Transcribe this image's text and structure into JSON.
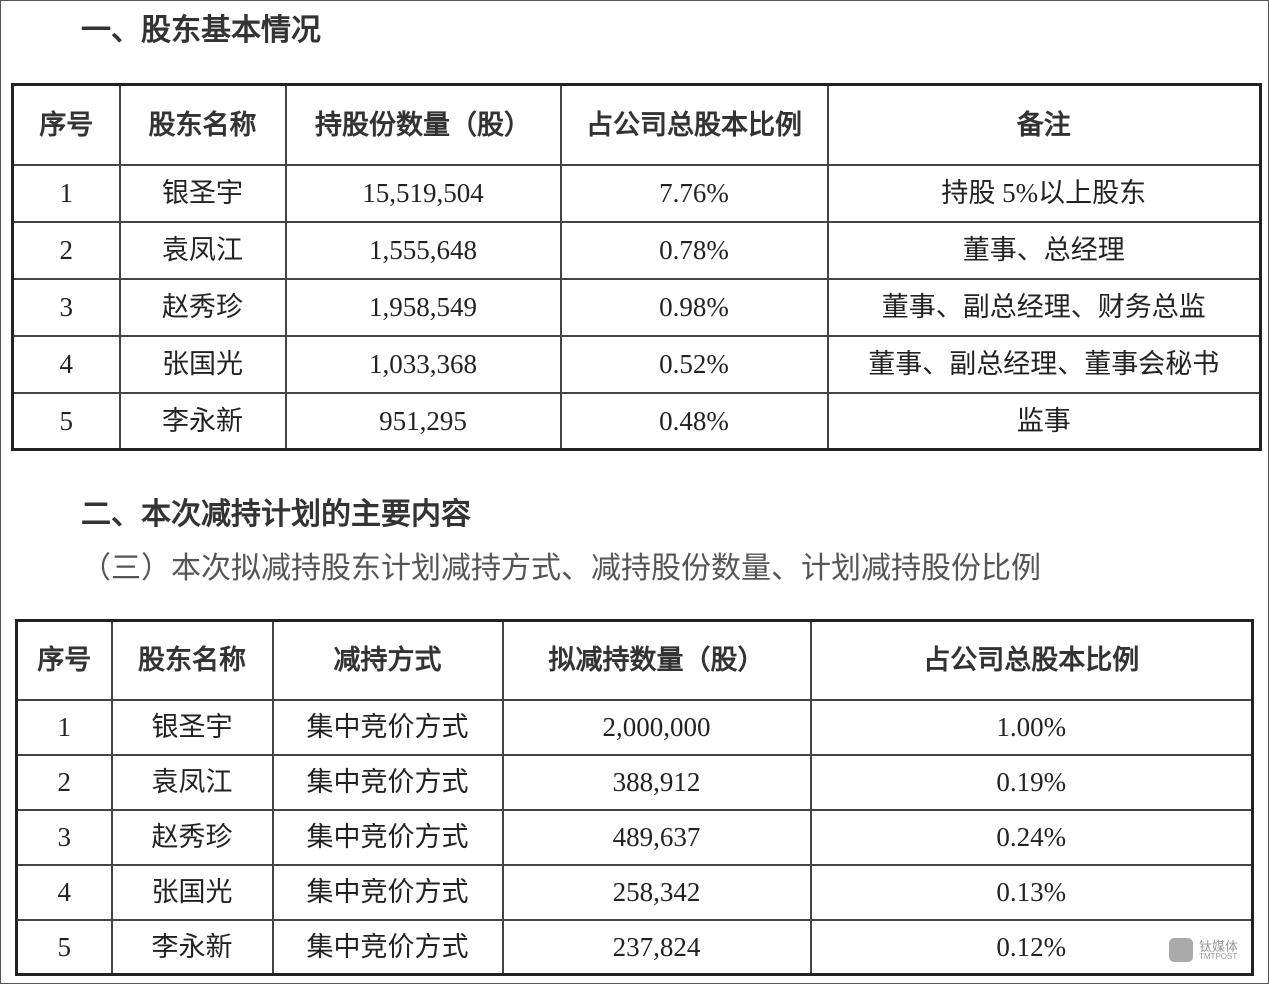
{
  "section1": {
    "title": "一、股东基本情况",
    "table": {
      "header": [
        "序号",
        "股东名称",
        "持股份数量（股）",
        "占公司总股本比例",
        "备注"
      ],
      "rows": [
        [
          "1",
          "银圣宇",
          "15,519,504",
          "7.76%",
          "持股 5%以上股东"
        ],
        [
          "2",
          "袁凤江",
          "1,555,648",
          "0.78%",
          "董事、总经理"
        ],
        [
          "3",
          "赵秀珍",
          "1,958,549",
          "0.98%",
          "董事、副总经理、财务总监"
        ],
        [
          "4",
          "张国光",
          "1,033,368",
          "0.52%",
          "董事、副总经理、董事会秘书"
        ],
        [
          "5",
          "李永新",
          "951,295",
          "0.48%",
          "监事"
        ]
      ]
    }
  },
  "section2": {
    "title": "二、本次减持计划的主要内容",
    "subtitle": "（三）本次拟减持股东计划减持方式、减持股份数量、计划减持股份比例",
    "table": {
      "header": [
        "序号",
        "股东名称",
        "减持方式",
        "拟减持数量（股）",
        "占公司总股本比例"
      ],
      "rows": [
        [
          "1",
          "银圣宇",
          "集中竞价方式",
          "2,000,000",
          "1.00%"
        ],
        [
          "2",
          "袁凤江",
          "集中竞价方式",
          "388,912",
          "0.19%"
        ],
        [
          "3",
          "赵秀珍",
          "集中竞价方式",
          "489,637",
          "0.24%"
        ],
        [
          "4",
          "张国光",
          "集中竞价方式",
          "258,342",
          "0.13%"
        ],
        [
          "5",
          "李永新",
          "集中竞价方式",
          "237,824",
          "0.12%"
        ]
      ]
    }
  },
  "watermark": {
    "text": "钛媒体",
    "subtext": "TMTPOST"
  }
}
